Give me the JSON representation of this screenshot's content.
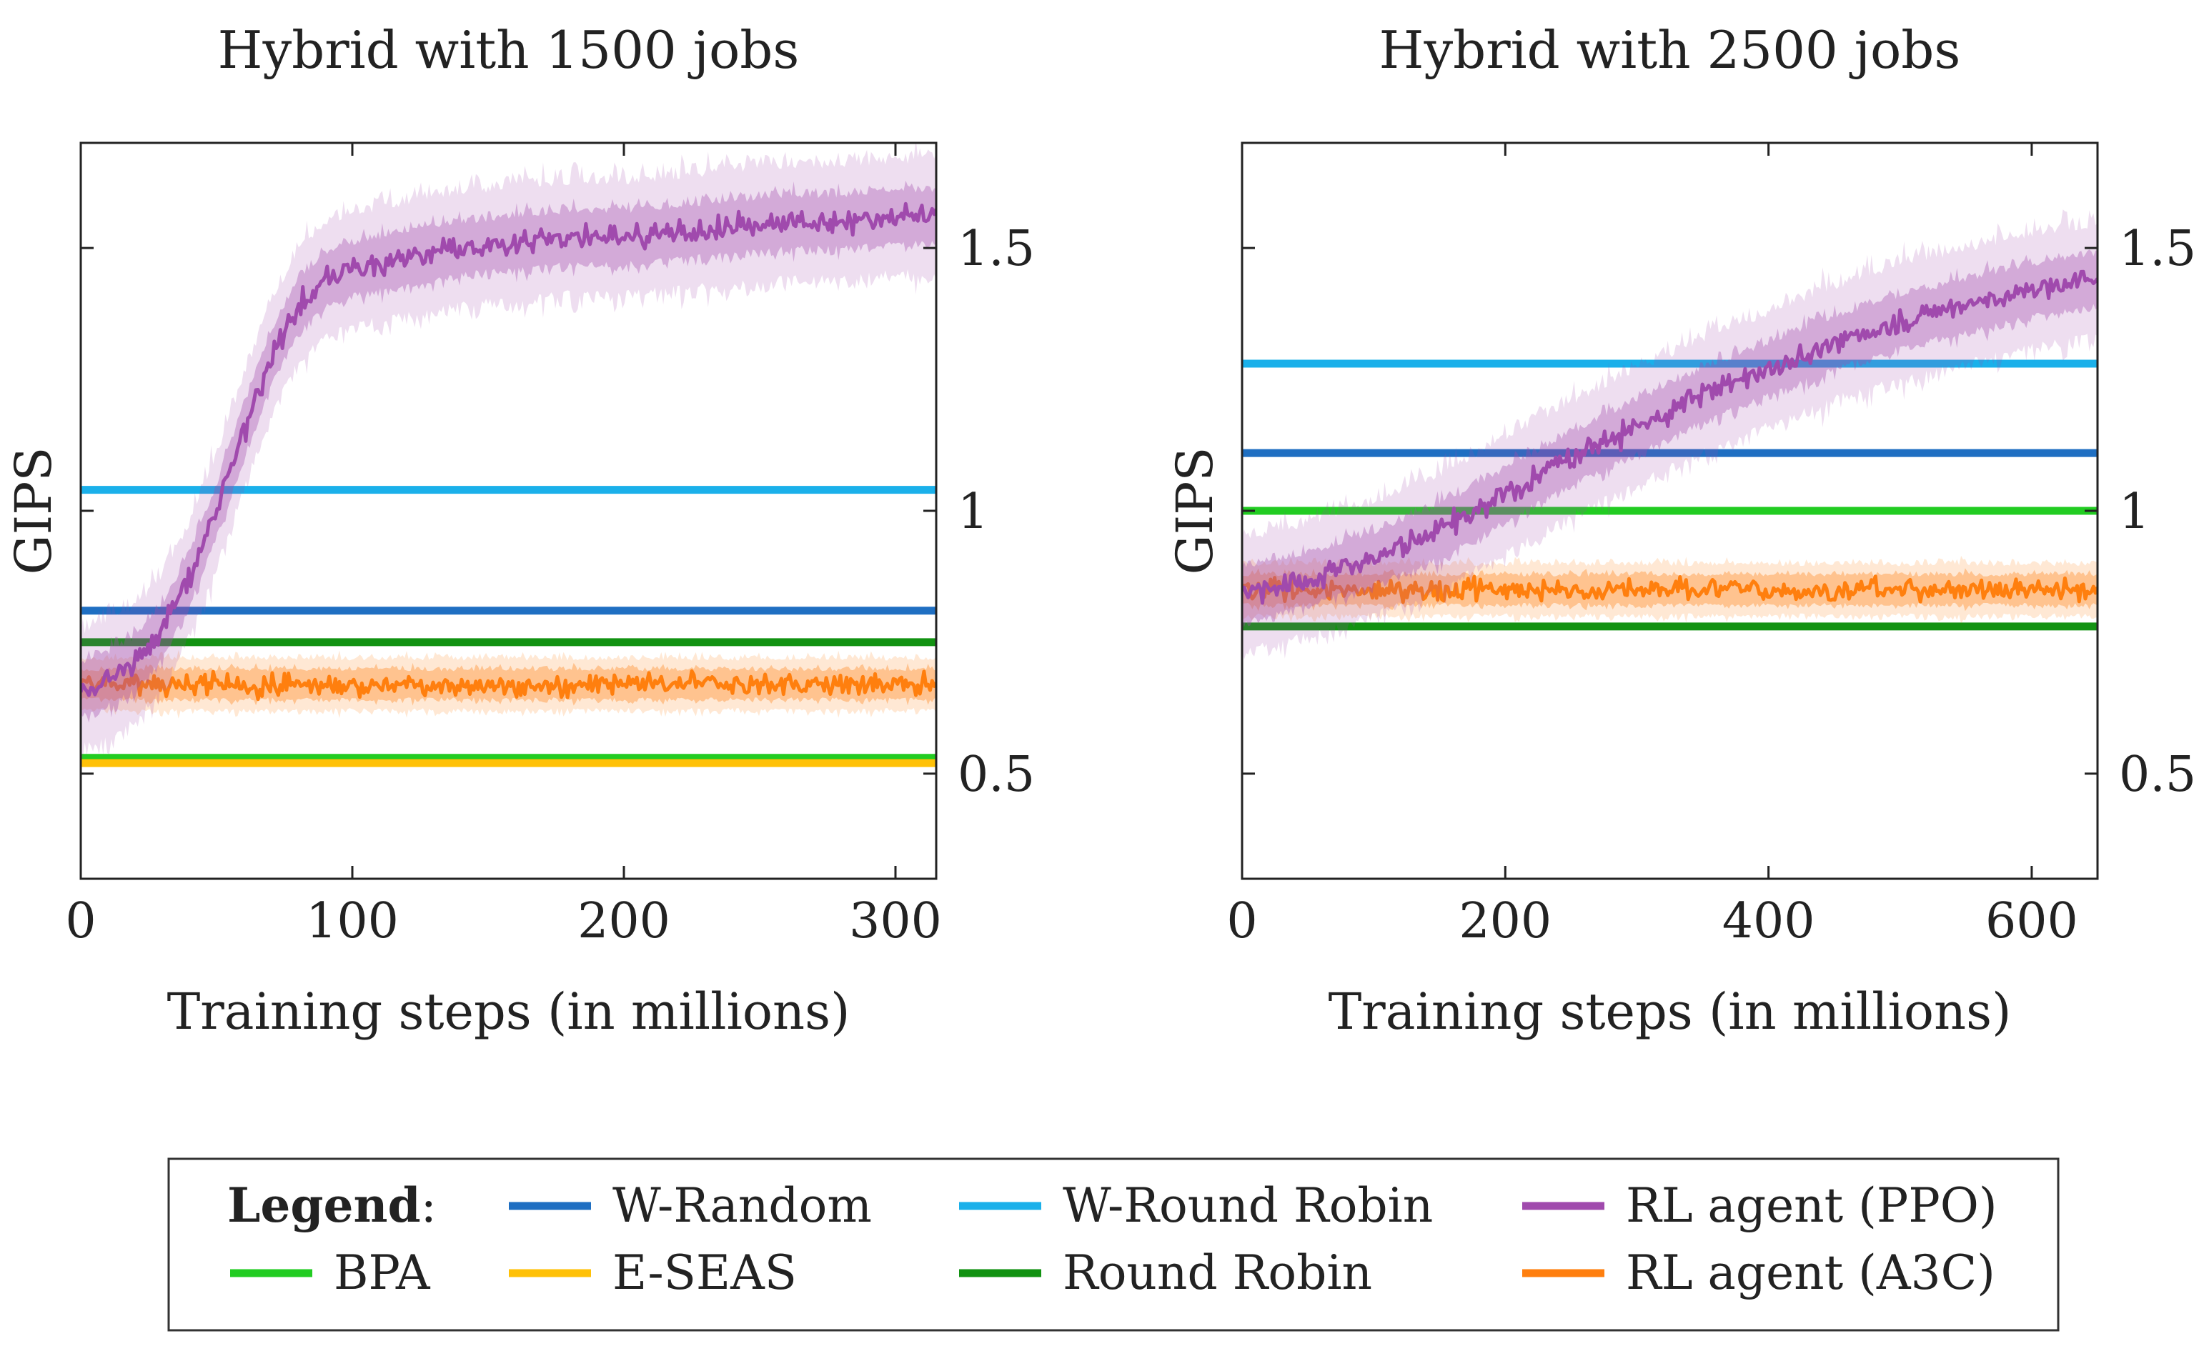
{
  "chart_data": [
    {
      "type": "line",
      "title": "Hybrid with 1500 jobs",
      "xlabel": "Training steps (in millions)",
      "ylabel": "GIPS",
      "xlim": [
        0,
        315
      ],
      "ylim": [
        0.3,
        1.7
      ],
      "xticks": [
        0,
        100,
        200,
        300
      ],
      "xtick_labels": [
        "0",
        "100",
        "200",
        "300"
      ],
      "yticks": [
        0.5,
        1,
        1.5
      ],
      "ytick_labels": [
        "0.5",
        "1",
        "1.5"
      ],
      "y_axis_side": "right",
      "grid": false,
      "series": [
        {
          "name": "W-Random",
          "color": "#1f6fc2",
          "x": [
            0,
            315
          ],
          "y": [
            0.81,
            0.81
          ]
        },
        {
          "name": "W-Round Robin",
          "color": "#1ab0ea",
          "x": [
            0,
            315
          ],
          "y": [
            1.04,
            1.04
          ]
        },
        {
          "name": "BPA",
          "color": "#22cc22",
          "x": [
            0,
            315
          ],
          "y": [
            0.53,
            0.53
          ]
        },
        {
          "name": "E-SEAS",
          "color": "#ffc107",
          "x": [
            0,
            315
          ],
          "y": [
            0.52,
            0.52
          ]
        },
        {
          "name": "Round Robin",
          "color": "#129212",
          "x": [
            0,
            315
          ],
          "y": [
            0.75,
            0.75
          ]
        },
        {
          "name": "RL agent (A3C)",
          "color": "#ff7f0e",
          "x": [
            0,
            50,
            100,
            150,
            200,
            250,
            315
          ],
          "y": [
            0.67,
            0.67,
            0.67,
            0.67,
            0.67,
            0.67,
            0.67
          ]
        },
        {
          "name": "RL agent (PPO)",
          "color": "#a04aad",
          "x": [
            0,
            10,
            20,
            30,
            40,
            50,
            60,
            70,
            80,
            90,
            100,
            120,
            140,
            160,
            180,
            200,
            220,
            240,
            260,
            280,
            300,
            315
          ],
          "y": [
            0.66,
            0.68,
            0.71,
            0.77,
            0.87,
            1.0,
            1.15,
            1.29,
            1.39,
            1.44,
            1.46,
            1.48,
            1.5,
            1.51,
            1.52,
            1.52,
            1.53,
            1.54,
            1.55,
            1.55,
            1.56,
            1.56
          ]
        }
      ]
    },
    {
      "type": "line",
      "title": "Hybrid with 2500 jobs",
      "xlabel": "Training steps (in millions)",
      "ylabel": "GIPS",
      "xlim": [
        0,
        650
      ],
      "ylim": [
        0.3,
        1.7
      ],
      "xticks": [
        0,
        200,
        400,
        600
      ],
      "xtick_labels": [
        "0",
        "200",
        "400",
        "600"
      ],
      "yticks": [
        0.5,
        1,
        1.5
      ],
      "ytick_labels": [
        "0.5",
        "1",
        "1.5"
      ],
      "y_axis_side": "right",
      "grid": false,
      "series": [
        {
          "name": "W-Random",
          "color": "#1f6fc2",
          "x": [
            0,
            650
          ],
          "y": [
            1.11,
            1.11
          ]
        },
        {
          "name": "W-Round Robin",
          "color": "#1ab0ea",
          "x": [
            0,
            650
          ],
          "y": [
            1.28,
            1.28
          ]
        },
        {
          "name": "BPA",
          "color": "#22cc22",
          "x": [
            0,
            650
          ],
          "y": [
            1.0,
            1.0
          ]
        },
        {
          "name": "Round Robin",
          "color": "#129212",
          "x": [
            0,
            650
          ],
          "y": [
            0.78,
            0.78
          ]
        },
        {
          "name": "RL agent (A3C)",
          "color": "#ff7f0e",
          "x": [
            0,
            100,
            200,
            300,
            400,
            500,
            650
          ],
          "y": [
            0.85,
            0.85,
            0.85,
            0.85,
            0.85,
            0.85,
            0.85
          ]
        },
        {
          "name": "RL agent (PPO)",
          "color": "#a04aad",
          "x": [
            0,
            50,
            100,
            150,
            200,
            250,
            300,
            350,
            400,
            450,
            500,
            550,
            600,
            650
          ],
          "y": [
            0.84,
            0.87,
            0.91,
            0.96,
            1.03,
            1.1,
            1.16,
            1.22,
            1.27,
            1.32,
            1.36,
            1.39,
            1.42,
            1.44
          ]
        }
      ]
    }
  ],
  "legend": {
    "title": "Legend",
    "colon": ":",
    "placement": "bottom",
    "entries": [
      {
        "label": "W-Random",
        "color": "#1f6fc2"
      },
      {
        "label": "W-Round Robin",
        "color": "#1ab0ea"
      },
      {
        "label": "RL agent (PPO)",
        "color": "#a04aad"
      },
      {
        "label": "BPA",
        "color": "#22cc22"
      },
      {
        "label": "E-SEAS",
        "color": "#ffc107"
      },
      {
        "label": "Round Robin",
        "color": "#129212"
      },
      {
        "label": "RL agent (A3C)",
        "color": "#ff7f0e"
      }
    ]
  }
}
